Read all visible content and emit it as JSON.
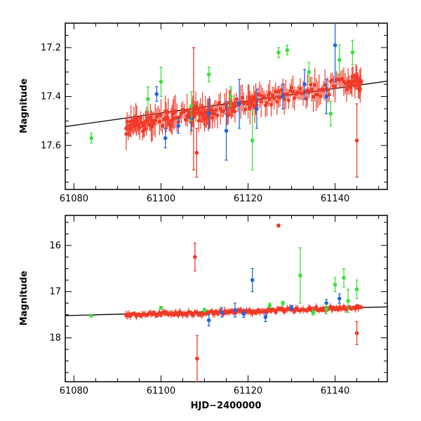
{
  "chart_data": [
    {
      "type": "scatter",
      "panel": "top",
      "title": "",
      "xlabel": "",
      "ylabel": "Magnitude",
      "xlim": [
        61078,
        61152
      ],
      "ylim": [
        17.78,
        17.1
      ],
      "y_inverted": true,
      "xticks": [
        61080,
        61100,
        61120,
        61140
      ],
      "xtick_labels": [
        "61080",
        "61100",
        "61120",
        "61140"
      ],
      "yticks": [
        17.2,
        17.4,
        17.6
      ],
      "ytick_labels": [
        "17.2",
        "17.4",
        "17.6"
      ],
      "trend_line": {
        "x": [
          61078,
          61152
        ],
        "y": [
          17.523,
          17.337
        ],
        "color": "#000000"
      },
      "series": [
        {
          "name": "red",
          "color": "#f03a27",
          "x": [
            61092,
            61094,
            61096,
            61098,
            61101,
            61103,
            61106,
            61108,
            61110,
            61112,
            61115,
            61117,
            61120,
            61122,
            61125,
            61128,
            61131,
            61134,
            61137,
            61140,
            61143,
            61145,
            61146
          ],
          "y": [
            17.53,
            17.52,
            17.51,
            17.5,
            17.49,
            17.49,
            17.48,
            17.47,
            17.47,
            17.46,
            17.45,
            17.44,
            17.43,
            17.42,
            17.41,
            17.4,
            17.39,
            17.38,
            17.37,
            17.36,
            17.35,
            17.34,
            17.34
          ]
        },
        {
          "name": "blue",
          "color": "#2166e0",
          "x": [
            61099,
            61101,
            61104,
            61107,
            61111,
            61115,
            61118,
            61122,
            61128,
            61133,
            61138,
            61140
          ],
          "y": [
            17.39,
            17.57,
            17.52,
            17.49,
            17.47,
            17.54,
            17.43,
            17.45,
            17.4,
            17.35,
            17.4,
            17.19
          ],
          "error": [
            0.03,
            0.04,
            0.03,
            0.05,
            0.06,
            0.12,
            0.1,
            0.08,
            0.05,
            0.06,
            0.07,
            0.15
          ]
        },
        {
          "name": "green",
          "color": "#3ae03a",
          "x": [
            61084,
            61097,
            61100,
            61107,
            61111,
            61116,
            61121,
            61127,
            61129,
            61134,
            61139,
            61141,
            61144
          ],
          "y": [
            17.57,
            17.41,
            17.34,
            17.44,
            17.31,
            17.4,
            17.58,
            17.22,
            17.21,
            17.3,
            17.47,
            17.25,
            17.22
          ],
          "error": [
            0.02,
            0.05,
            0.06,
            0.06,
            0.03,
            0.04,
            0.12,
            0.02,
            0.02,
            0.04,
            0.05,
            0.06,
            0.05
          ]
        },
        {
          "name": "red-outliers",
          "color": "#f03a27",
          "x": [
            61107.5,
            61108.2,
            61127,
            61145
          ],
          "y": [
            17.45,
            17.63,
            17.38,
            17.58
          ],
          "error": [
            0.25,
            0.1,
            0.02,
            0.15
          ]
        }
      ]
    },
    {
      "type": "scatter",
      "panel": "bottom",
      "title": "",
      "xlabel": "HJD−2400000",
      "ylabel": "Magnitude",
      "xlim": [
        61078,
        61152
      ],
      "ylim": [
        18.95,
        15.35
      ],
      "y_inverted": true,
      "xticks": [
        61080,
        61100,
        61120,
        61140
      ],
      "xtick_labels": [
        "61080",
        "61100",
        "61120",
        "61140"
      ],
      "yticks": [
        16,
        17,
        18
      ],
      "ytick_labels": [
        "16",
        "17",
        "18"
      ],
      "trend_line": {
        "x": [
          61078,
          61152
        ],
        "y": [
          17.52,
          17.33
        ],
        "color": "#000000"
      },
      "series": [
        {
          "name": "red",
          "color": "#f03a27",
          "x": [
            61092,
            61095,
            61098,
            61101,
            61104,
            61107,
            61110,
            61113,
            61116,
            61119,
            61122,
            61125,
            61128,
            61131,
            61134,
            61137,
            61140,
            61143,
            61146
          ],
          "y": [
            17.51,
            17.5,
            17.49,
            17.48,
            17.47,
            17.47,
            17.46,
            17.45,
            17.44,
            17.43,
            17.42,
            17.41,
            17.4,
            17.39,
            17.38,
            17.37,
            17.36,
            17.35,
            17.34
          ]
        },
        {
          "name": "blue",
          "color": "#2166e0",
          "x": [
            61111,
            61114,
            61117,
            61119,
            61121,
            61124,
            61130,
            61138,
            61141
          ],
          "y": [
            17.62,
            17.45,
            17.4,
            17.48,
            16.75,
            17.55,
            17.35,
            17.25,
            17.15
          ],
          "error": [
            0.12,
            0.1,
            0.15,
            0.08,
            0.25,
            0.1,
            0.05,
            0.08,
            0.1
          ]
        },
        {
          "name": "green",
          "color": "#3ae03a",
          "x": [
            61084,
            61100,
            61110,
            61125,
            61128,
            61132,
            61135,
            61138,
            61140,
            61142,
            61143,
            61145
          ],
          "y": [
            17.52,
            17.35,
            17.4,
            17.3,
            17.25,
            16.65,
            17.45,
            17.38,
            16.85,
            16.7,
            17.2,
            16.95
          ],
          "error": [
            0.02,
            0.03,
            0.04,
            0.05,
            0.04,
            0.6,
            0.06,
            0.1,
            0.15,
            0.2,
            0.25,
            0.2
          ]
        },
        {
          "name": "red-outliers",
          "color": "#f03a27",
          "x": [
            61107.8,
            61108.3,
            61127,
            61145
          ],
          "y": [
            16.25,
            18.45,
            15.57,
            17.9
          ],
          "error": [
            0.3,
            0.5,
            0.03,
            0.25
          ]
        }
      ]
    }
  ]
}
